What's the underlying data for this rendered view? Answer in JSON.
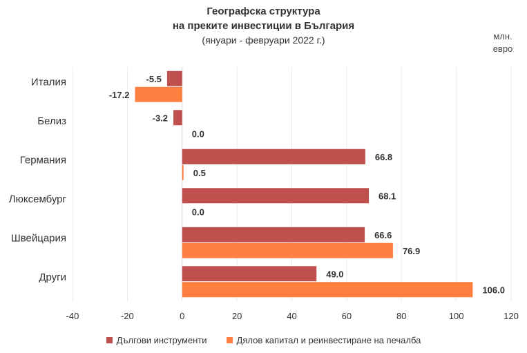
{
  "chart_data": {
    "type": "bar",
    "orientation": "horizontal",
    "title": "Географска структура",
    "title_line2": "на преките инвестиции в България",
    "subtitle": "(януари - февруари 2022 г.)",
    "unit_label_line1": "млн.",
    "unit_label_line2": "евро",
    "categories": [
      "Италия",
      "Белиз",
      "Германия",
      "Люксембург",
      "Швейцария",
      "Други"
    ],
    "series": [
      {
        "name": "Дългови инструменти",
        "color": "#c0504d",
        "values": [
          -5.5,
          -3.2,
          66.8,
          68.1,
          66.6,
          49.0
        ],
        "labels": [
          "-5.5",
          "-3.2",
          "66.8",
          "68.1",
          "66.6",
          "49.0"
        ]
      },
      {
        "name": "Дялов капитал и реинвестиране на печалба",
        "color": "#ff7f41",
        "values": [
          -17.2,
          0.0,
          0.5,
          0.0,
          76.9,
          106.0
        ],
        "labels": [
          "-17.2",
          "0.0",
          "0.5",
          "0.0",
          "76.9",
          "106.0"
        ]
      }
    ],
    "xlim": [
      -40,
      120
    ],
    "xticks": [
      "-40",
      "-20",
      "0",
      "20",
      "40",
      "60",
      "80",
      "100",
      "120"
    ],
    "grid": "vertical",
    "legend_position": "bottom"
  }
}
